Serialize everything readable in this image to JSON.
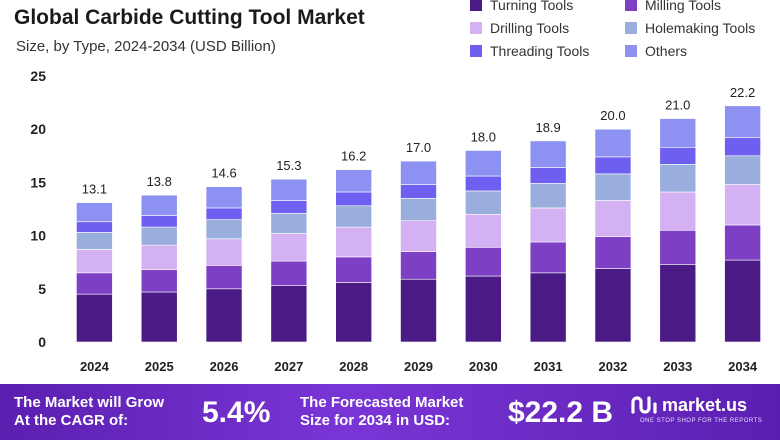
{
  "header": {
    "title": "Global Carbide Cutting Tool Market",
    "subtitle": "Size, by Type, 2024-2034 (USD Billion)"
  },
  "legend": [
    {
      "label": "Turning Tools",
      "color": "#4a1a85"
    },
    {
      "label": "Milling Tools",
      "color": "#7d3fc4"
    },
    {
      "label": "Drilling Tools",
      "color": "#d4b1f2"
    },
    {
      "label": "Holemaking Tools",
      "color": "#9aaedd"
    },
    {
      "label": "Threading Tools",
      "color": "#6e5ff0"
    },
    {
      "label": "Others",
      "color": "#8d92f2"
    }
  ],
  "chart_data": {
    "type": "bar",
    "stacked": true,
    "title": "Global Carbide Cutting Tool Market",
    "subtitle": "Size, by Type, 2024-2034 (USD Billion)",
    "xlabel": "",
    "ylabel": "",
    "ylim": [
      0,
      25
    ],
    "yticks": [
      0,
      5,
      10,
      15,
      20,
      25
    ],
    "grid": false,
    "legend_position": "top-right",
    "categories": [
      "2024",
      "2025",
      "2026",
      "2027",
      "2028",
      "2029",
      "2030",
      "2031",
      "2032",
      "2033",
      "2034"
    ],
    "totals": [
      13.1,
      13.8,
      14.6,
      15.3,
      16.2,
      17.0,
      18.0,
      18.9,
      20.0,
      21.0,
      22.2
    ],
    "total_labels": [
      "13.1",
      "13.8",
      "14.6",
      "15.3",
      "16.2",
      "17.0",
      "18.0",
      "18.9",
      "20.0",
      "21.0",
      "22.2"
    ],
    "series": [
      {
        "name": "Turning Tools",
        "values": [
          4.5,
          4.7,
          5.0,
          5.3,
          5.6,
          5.9,
          6.2,
          6.5,
          6.9,
          7.3,
          7.7
        ]
      },
      {
        "name": "Milling Tools",
        "values": [
          2.0,
          2.1,
          2.2,
          2.3,
          2.4,
          2.6,
          2.7,
          2.9,
          3.0,
          3.2,
          3.3
        ]
      },
      {
        "name": "Drilling Tools",
        "values": [
          2.2,
          2.3,
          2.5,
          2.6,
          2.8,
          2.9,
          3.1,
          3.2,
          3.4,
          3.6,
          3.8
        ]
      },
      {
        "name": "Holemaking Tools",
        "values": [
          1.6,
          1.7,
          1.8,
          1.9,
          2.0,
          2.1,
          2.2,
          2.3,
          2.5,
          2.6,
          2.7
        ]
      },
      {
        "name": "Threading Tools",
        "values": [
          1.0,
          1.1,
          1.1,
          1.2,
          1.3,
          1.3,
          1.4,
          1.5,
          1.6,
          1.6,
          1.7
        ]
      },
      {
        "name": "Others",
        "values": [
          1.8,
          1.9,
          2.0,
          2.0,
          2.1,
          2.2,
          2.4,
          2.5,
          2.6,
          2.7,
          3.0
        ]
      }
    ]
  },
  "footer": {
    "cagr_label_line1": "The Market will Grow",
    "cagr_label_line2": "At the CAGR of:",
    "cagr_value": "5.4%",
    "forecast_label_line1": "The Forecasted Market",
    "forecast_label_line2": "Size for 2034 in USD:",
    "forecast_value": "$22.2 B",
    "brand_name": "market.us",
    "brand_tagline": "ONE STOP SHOP FOR THE REPORTS"
  }
}
